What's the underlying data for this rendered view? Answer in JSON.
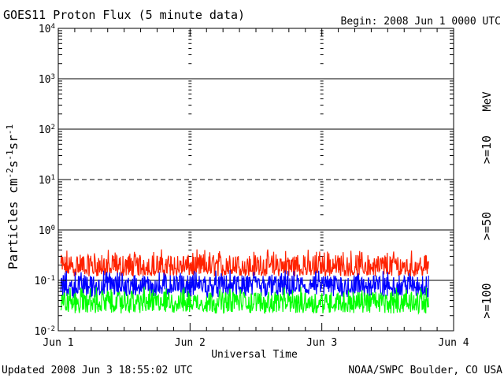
{
  "header": {
    "title": "GOES11 Proton Flux (5 minute data)",
    "begin": "Begin: 2008 Jun 1 0000 UTC"
  },
  "footer": {
    "updated": "Updated 2008 Jun  3 18:55:02 UTC",
    "credit": "NOAA/SWPC Boulder, CO USA"
  },
  "chart_data": {
    "type": "line",
    "title": "GOES11 Proton Flux (5 minute data)",
    "xlabel": "Universal Time",
    "ylabel": "Particles cm-2 s-1 sr-1",
    "yscale": "log",
    "ylim": [
      0.01,
      10000
    ],
    "xlim_days": [
      0,
      3
    ],
    "x_ticks": [
      "Jun 1",
      "Jun 2",
      "Jun 3",
      "Jun 4"
    ],
    "y_ticks": [
      {
        "base": "10",
        "exp": "-2"
      },
      {
        "base": "10",
        "exp": "-1"
      },
      {
        "base": "10",
        "exp": "0"
      },
      {
        "base": "10",
        "exp": "1"
      },
      {
        "base": "10",
        "exp": "2"
      },
      {
        "base": "10",
        "exp": "3"
      },
      {
        "base": "10",
        "exp": "4"
      }
    ],
    "unit_label": "MeV",
    "grid": true,
    "data_end_day": 2.79,
    "series": [
      {
        "name": ">=10",
        "color": "#ff2200",
        "baseline": 0.17,
        "low": 0.12,
        "high": 0.42
      },
      {
        "name": ">=50",
        "color": "#0000ff",
        "baseline": 0.075,
        "low": 0.045,
        "high": 0.16
      },
      {
        "name": ">=100",
        "color": "#00ff00",
        "baseline": 0.035,
        "low": 0.022,
        "high": 0.075
      }
    ]
  }
}
